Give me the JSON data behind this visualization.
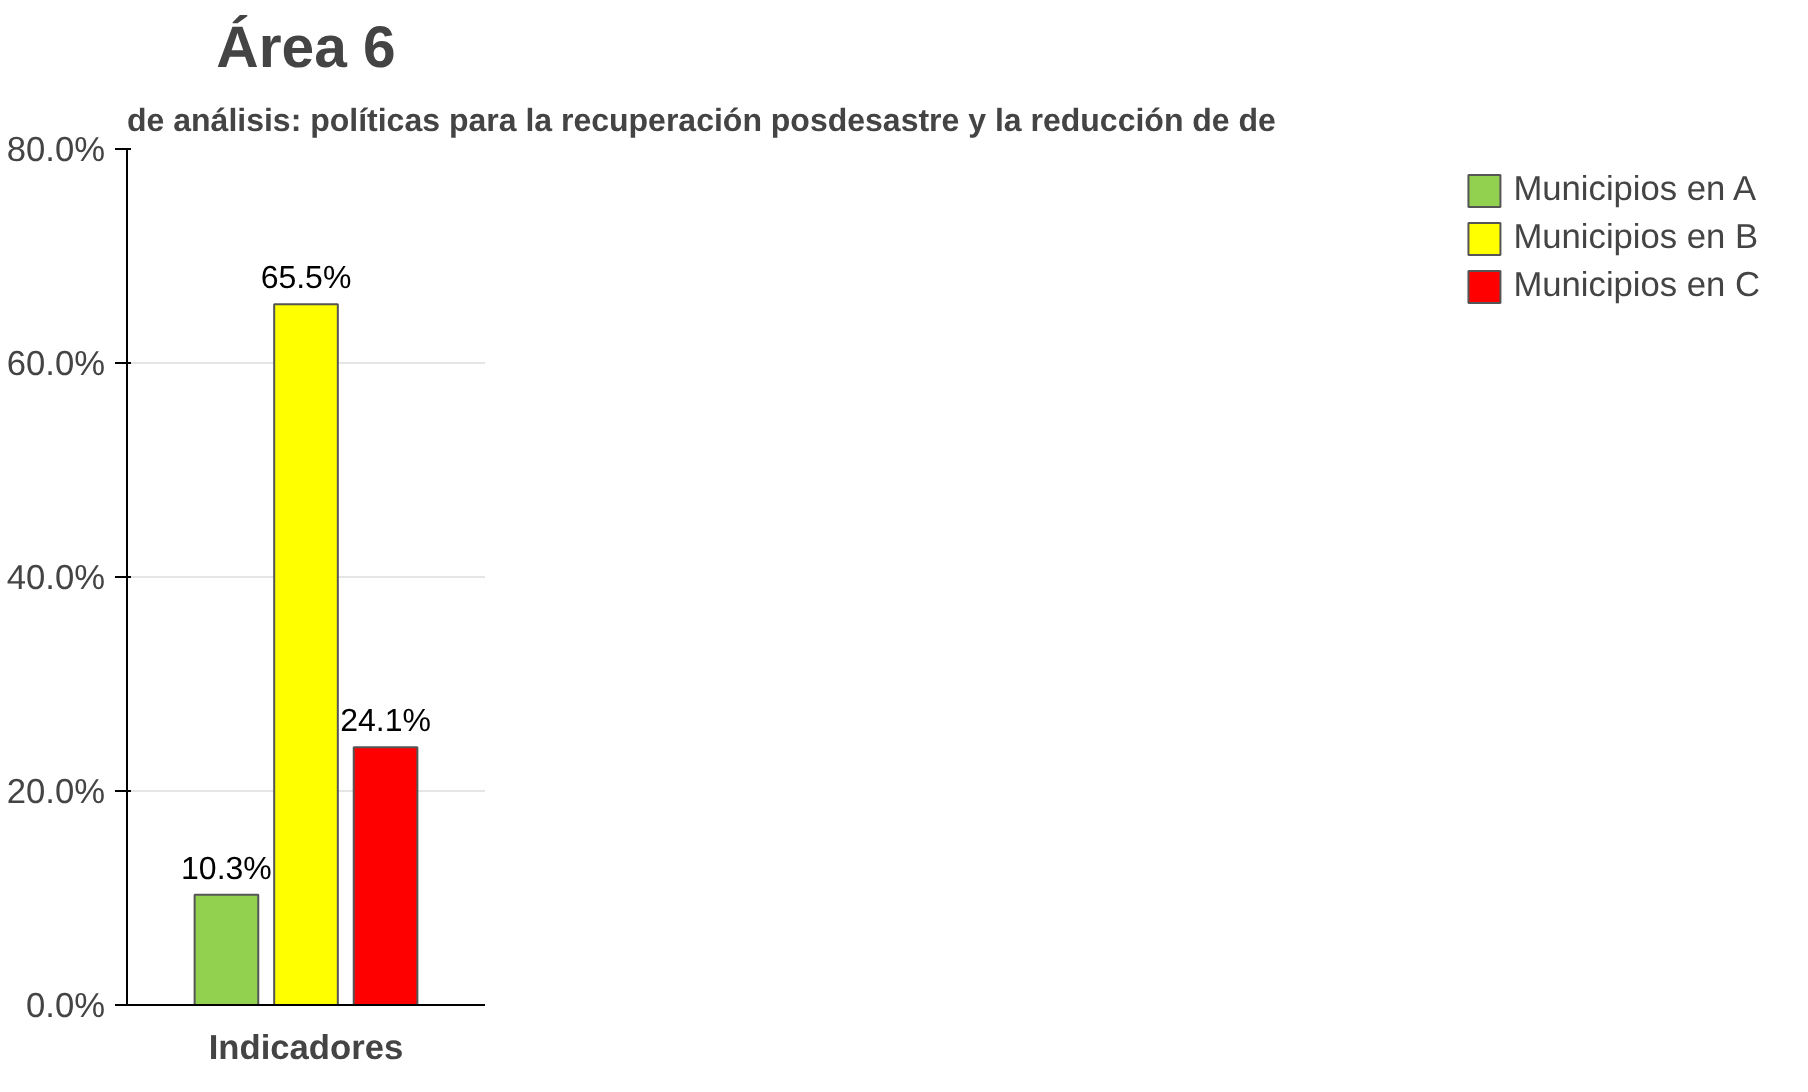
{
  "chart_data": {
    "type": "bar",
    "title": "Área 6",
    "xlabel": "Indicadores",
    "annotations": [
      "de análisis: políticas para la recuperación posdesastre y la reducción de de"
    ],
    "categories": [
      null
    ],
    "series": [
      {
        "name": "Municipios en A",
        "color": "#92d050",
        "values": [
          10.3
        ],
        "value_labels": [
          "10.3%"
        ]
      },
      {
        "name": "Municipios en B",
        "color": "#ffff00",
        "values": [
          65.5
        ],
        "value_labels": [
          "65.5%"
        ]
      },
      {
        "name": "Municipios en C",
        "color": "#ff0000",
        "values": [
          24.1
        ],
        "value_labels": [
          "24.1%"
        ]
      }
    ],
    "ylim": [
      0,
      80
    ],
    "yticks": [
      {
        "value": 0,
        "label": "0.0%"
      },
      {
        "value": 20,
        "label": "20.0%"
      },
      {
        "value": 40,
        "label": "40.0%"
      },
      {
        "value": 60,
        "label": "60.0%"
      },
      {
        "value": 80,
        "label": "80.0%"
      }
    ],
    "grid": "y",
    "legend": "right"
  }
}
